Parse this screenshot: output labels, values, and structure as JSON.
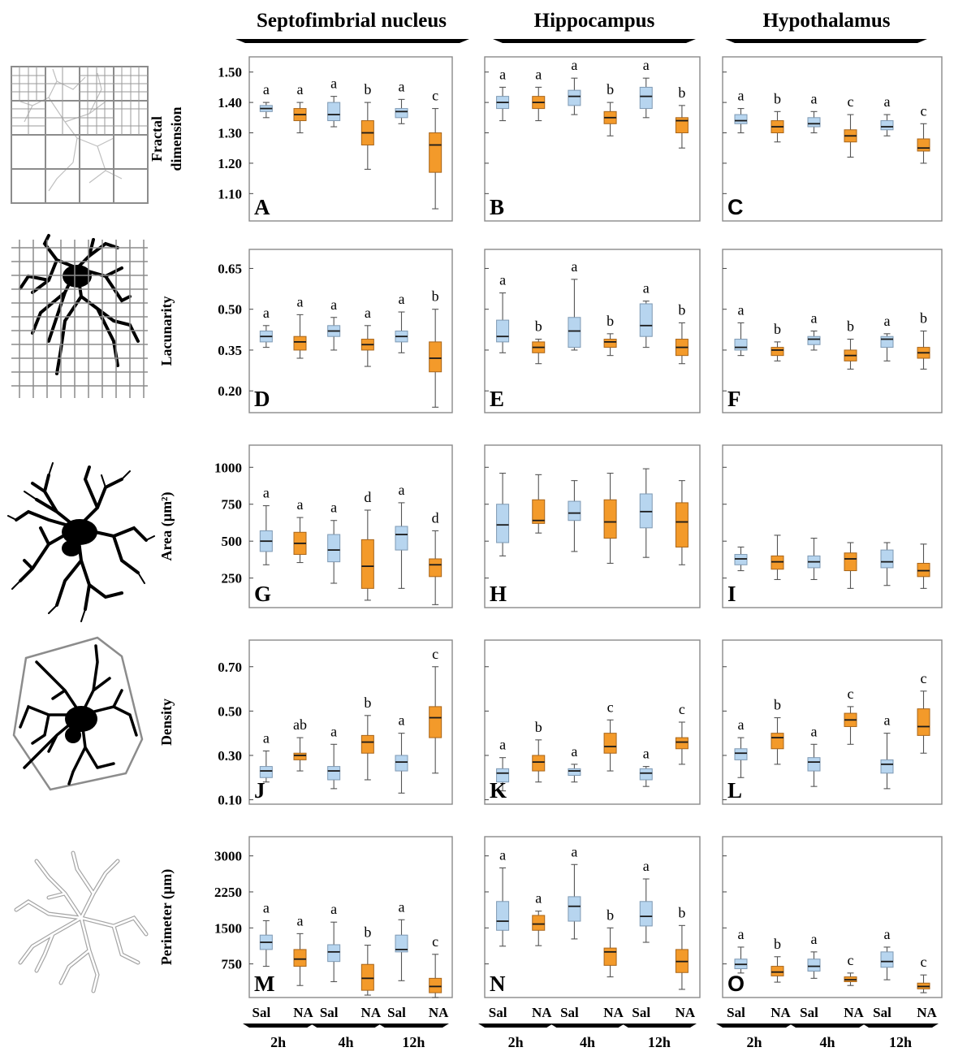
{
  "figure": {
    "regions": [
      "Septofimbrial nucleus",
      "Hippocampus",
      "Hypothalamus"
    ],
    "group_labels": [
      "Sal",
      "NA"
    ],
    "time_labels": [
      "2h",
      "4h",
      "12h"
    ]
  },
  "colors": {
    "saline": "#b7d5ef",
    "saline_stroke": "#7e99b3",
    "na": "#f39a2a",
    "na_stroke": "#a8651a",
    "frame": "#8a8a8a",
    "median": "#1a1a1a",
    "whisker": "#555555"
  },
  "icons": [
    "box-counting-grid-cell-icon",
    "lacunarity-grid-cell-icon",
    "filled-microglia-icon",
    "convex-hull-cell-icon",
    "perimeter-outline-cell-icon"
  ],
  "chart_data": [
    {
      "type": "boxplot",
      "metric": "fractal",
      "ylabel": [
        "Fractal",
        "dimension"
      ],
      "ylim": [
        1.01,
        1.55
      ],
      "ticks": [
        1.1,
        1.2,
        1.3,
        1.4,
        1.5
      ],
      "tick_labels": [
        "1.10",
        "1.20",
        "1.30",
        "1.40",
        "1.50"
      ],
      "panels": [
        {
          "letter": "A",
          "font": "serif",
          "boxes": [
            [
              1.35,
              1.37,
              1.38,
              1.39,
              1.4
            ],
            [
              1.3,
              1.34,
              1.36,
              1.38,
              1.4
            ],
            [
              1.32,
              1.34,
              1.36,
              1.4,
              1.42
            ],
            [
              1.18,
              1.26,
              1.3,
              1.34,
              1.4
            ],
            [
              1.33,
              1.35,
              1.37,
              1.38,
              1.41
            ],
            [
              1.05,
              1.17,
              1.26,
              1.3,
              1.38
            ]
          ],
          "letters": [
            "a",
            "a",
            "a",
            "b",
            "a",
            "c"
          ]
        },
        {
          "letter": "B",
          "font": "serif",
          "boxes": [
            [
              1.34,
              1.38,
              1.4,
              1.42,
              1.45
            ],
            [
              1.34,
              1.38,
              1.4,
              1.42,
              1.45
            ],
            [
              1.36,
              1.39,
              1.42,
              1.44,
              1.48
            ],
            [
              1.29,
              1.33,
              1.35,
              1.37,
              1.4
            ],
            [
              1.35,
              1.38,
              1.42,
              1.45,
              1.48
            ],
            [
              1.25,
              1.3,
              1.34,
              1.35,
              1.39
            ]
          ],
          "letters": [
            "a",
            "a",
            "a",
            "b",
            "a",
            "b"
          ]
        },
        {
          "letter": "C",
          "font": "sans",
          "boxes": [
            [
              1.3,
              1.33,
              1.34,
              1.36,
              1.38
            ],
            [
              1.27,
              1.3,
              1.32,
              1.34,
              1.37
            ],
            [
              1.3,
              1.32,
              1.33,
              1.35,
              1.37
            ],
            [
              1.22,
              1.27,
              1.29,
              1.31,
              1.36
            ],
            [
              1.29,
              1.31,
              1.32,
              1.34,
              1.36
            ],
            [
              1.2,
              1.24,
              1.25,
              1.28,
              1.33
            ]
          ],
          "letters": [
            "a",
            "b",
            "a",
            "c",
            "a",
            "c"
          ]
        }
      ]
    },
    {
      "type": "boxplot",
      "metric": "lacunarity",
      "ylabel": [
        "Lacunarity"
      ],
      "ylim": [
        0.12,
        0.72
      ],
      "ticks": [
        0.2,
        0.35,
        0.5,
        0.65
      ],
      "tick_labels": [
        "0.20",
        "0.35",
        "0.50",
        "0.65"
      ],
      "panels": [
        {
          "letter": "D",
          "font": "serif",
          "boxes": [
            [
              0.36,
              0.38,
              0.4,
              0.42,
              0.44
            ],
            [
              0.32,
              0.35,
              0.38,
              0.4,
              0.48
            ],
            [
              0.35,
              0.4,
              0.42,
              0.44,
              0.47
            ],
            [
              0.29,
              0.35,
              0.37,
              0.39,
              0.44
            ],
            [
              0.34,
              0.38,
              0.4,
              0.42,
              0.49
            ],
            [
              0.14,
              0.27,
              0.32,
              0.38,
              0.5
            ]
          ],
          "letters": [
            "a",
            "a",
            "a",
            "a",
            "a",
            "b"
          ]
        },
        {
          "letter": "E",
          "font": "serif",
          "boxes": [
            [
              0.34,
              0.38,
              0.4,
              0.46,
              0.56
            ],
            [
              0.3,
              0.34,
              0.36,
              0.38,
              0.39
            ],
            [
              0.35,
              0.36,
              0.42,
              0.47,
              0.61
            ],
            [
              0.33,
              0.36,
              0.38,
              0.39,
              0.41
            ],
            [
              0.36,
              0.4,
              0.44,
              0.52,
              0.53
            ],
            [
              0.3,
              0.33,
              0.36,
              0.39,
              0.45
            ]
          ],
          "letters": [
            "a",
            "b",
            "a",
            "b",
            "a",
            "b"
          ]
        },
        {
          "letter": "F",
          "font": "serif",
          "boxes": [
            [
              0.33,
              0.35,
              0.36,
              0.39,
              0.45
            ],
            [
              0.31,
              0.33,
              0.35,
              0.36,
              0.38
            ],
            [
              0.35,
              0.37,
              0.39,
              0.4,
              0.42
            ],
            [
              0.28,
              0.31,
              0.33,
              0.35,
              0.39
            ],
            [
              0.31,
              0.36,
              0.39,
              0.4,
              0.41
            ],
            [
              0.28,
              0.32,
              0.34,
              0.36,
              0.42
            ]
          ],
          "letters": [
            "a",
            "b",
            "a",
            "b",
            "a",
            "b"
          ]
        }
      ]
    },
    {
      "type": "boxplot",
      "metric": "area",
      "ylabel": [
        "Area (µm²)"
      ],
      "ylim": [
        50,
        1150
      ],
      "ticks": [
        250,
        500,
        750,
        1000
      ],
      "tick_labels": [
        "250",
        "500",
        "750",
        "1000"
      ],
      "panels": [
        {
          "letter": "G",
          "font": "serif",
          "boxes": [
            [
              340,
              430,
              500,
              570,
              740
            ],
            [
              355,
              410,
              485,
              560,
              660
            ],
            [
              215,
              360,
              440,
              545,
              640
            ],
            [
              100,
              180,
              330,
              510,
              710
            ],
            [
              180,
              440,
              545,
              600,
              760
            ],
            [
              70,
              260,
              340,
              380,
              570
            ]
          ],
          "letters": [
            "a",
            "a",
            "a",
            "d",
            "a",
            "d"
          ]
        },
        {
          "letter": "H",
          "font": "serif",
          "boxes": [
            [
              400,
              490,
              610,
              750,
              960
            ],
            [
              555,
              620,
              640,
              780,
              950
            ],
            [
              430,
              640,
              690,
              770,
              910
            ],
            [
              350,
              520,
              630,
              780,
              960
            ],
            [
              390,
              590,
              700,
              820,
              990
            ],
            [
              340,
              460,
              630,
              760,
              910
            ]
          ],
          "letters": []
        },
        {
          "letter": "I",
          "font": "serif",
          "boxes": [
            [
              300,
              340,
              380,
              410,
              460
            ],
            [
              240,
              310,
              360,
              400,
              540
            ],
            [
              240,
              320,
              360,
              400,
              520
            ],
            [
              180,
              300,
              380,
              420,
              490
            ],
            [
              200,
              320,
              360,
              440,
              490
            ],
            [
              180,
              260,
              300,
              350,
              480
            ]
          ],
          "letters": []
        }
      ]
    },
    {
      "type": "boxplot",
      "metric": "density",
      "ylabel": [
        "Density"
      ],
      "ylim": [
        0.08,
        0.82
      ],
      "ticks": [
        0.1,
        0.3,
        0.5,
        0.7
      ],
      "tick_labels": [
        "0.10",
        "0.30",
        "0.50",
        "0.70"
      ],
      "panels": [
        {
          "letter": "J",
          "font": "serif",
          "boxes": [
            [
              0.18,
              0.2,
              0.23,
              0.25,
              0.32
            ],
            [
              0.23,
              0.28,
              0.3,
              0.31,
              0.38
            ],
            [
              0.15,
              0.19,
              0.23,
              0.25,
              0.35
            ],
            [
              0.19,
              0.31,
              0.36,
              0.39,
              0.48
            ],
            [
              0.13,
              0.23,
              0.27,
              0.3,
              0.4
            ],
            [
              0.22,
              0.38,
              0.47,
              0.52,
              0.7
            ]
          ],
          "letters": [
            "a",
            "ab",
            "a",
            "b",
            "a",
            "c"
          ]
        },
        {
          "letter": "K",
          "font": "serif",
          "boxes": [
            [
              0.14,
              0.18,
              0.22,
              0.24,
              0.29
            ],
            [
              0.18,
              0.23,
              0.27,
              0.3,
              0.37
            ],
            [
              0.18,
              0.21,
              0.23,
              0.24,
              0.26
            ],
            [
              0.23,
              0.31,
              0.34,
              0.4,
              0.46
            ],
            [
              0.16,
              0.19,
              0.22,
              0.24,
              0.25
            ],
            [
              0.26,
              0.33,
              0.36,
              0.38,
              0.45
            ]
          ],
          "letters": [
            "a",
            "b",
            "a",
            "c",
            "a",
            "c"
          ]
        },
        {
          "letter": "L",
          "font": "serif",
          "boxes": [
            [
              0.2,
              0.28,
              0.31,
              0.33,
              0.38
            ],
            [
              0.26,
              0.33,
              0.38,
              0.4,
              0.47
            ],
            [
              0.16,
              0.23,
              0.27,
              0.29,
              0.35
            ],
            [
              0.35,
              0.43,
              0.46,
              0.49,
              0.52
            ],
            [
              0.15,
              0.22,
              0.26,
              0.28,
              0.4
            ],
            [
              0.31,
              0.39,
              0.43,
              0.51,
              0.59
            ]
          ],
          "letters": [
            "a",
            "b",
            "a",
            "c",
            "a",
            "c"
          ]
        }
      ]
    },
    {
      "type": "boxplot",
      "metric": "perimeter",
      "ylabel": [
        "Perimeter (µm)"
      ],
      "ylim": [
        50,
        3400
      ],
      "ticks": [
        750,
        1500,
        2250,
        3000
      ],
      "tick_labels": [
        "750",
        "1500",
        "2250",
        "3000"
      ],
      "panels": [
        {
          "letter": "M",
          "font": "serif",
          "boxes": [
            [
              700,
              1050,
              1200,
              1350,
              1650
            ],
            [
              300,
              700,
              850,
              1050,
              1380
            ],
            [
              380,
              800,
              1000,
              1150,
              1620
            ],
            [
              100,
              200,
              450,
              740,
              1140
            ],
            [
              400,
              1000,
              1050,
              1350,
              1670
            ],
            [
              50,
              150,
              280,
              450,
              950
            ]
          ],
          "letters": [
            "a",
            "a",
            "a",
            "b",
            "a",
            "c"
          ]
        },
        {
          "letter": "N",
          "font": "serif",
          "boxes": [
            [
              1120,
              1450,
              1640,
              2050,
              2750
            ],
            [
              1130,
              1450,
              1580,
              1760,
              1850
            ],
            [
              1270,
              1640,
              1950,
              2150,
              2820
            ],
            [
              480,
              720,
              1000,
              1080,
              1500
            ],
            [
              1200,
              1540,
              1740,
              2050,
              2520
            ],
            [
              220,
              570,
              800,
              1050,
              1550
            ]
          ],
          "letters": [
            "a",
            "a",
            "a",
            "b",
            "a",
            "b"
          ]
        },
        {
          "letter": "O",
          "font": "sans",
          "boxes": [
            [
              560,
              650,
              740,
              850,
              1100
            ],
            [
              370,
              500,
              580,
              700,
              900
            ],
            [
              450,
              600,
              700,
              850,
              1000
            ],
            [
              300,
              380,
              420,
              480,
              560
            ],
            [
              420,
              680,
              800,
              1000,
              1100
            ],
            [
              150,
              230,
              280,
              350,
              520
            ]
          ],
          "letters": [
            "a",
            "b",
            "a",
            "c",
            "a",
            "c"
          ]
        }
      ]
    }
  ]
}
